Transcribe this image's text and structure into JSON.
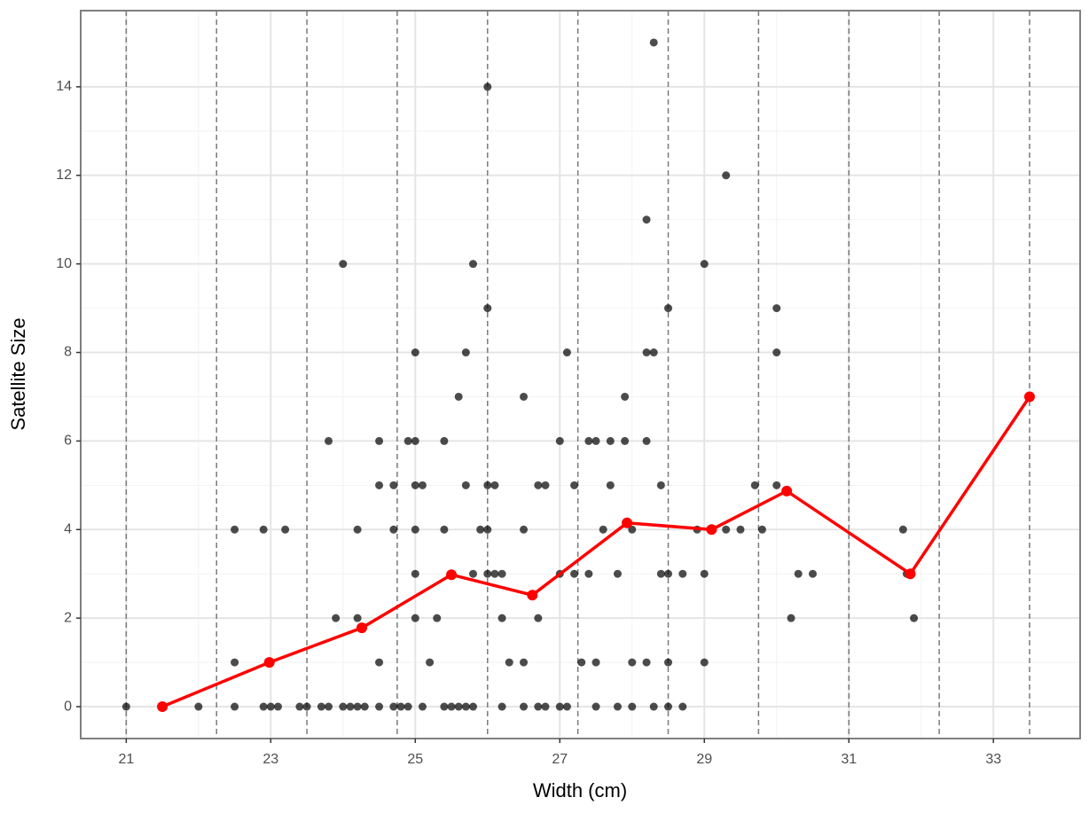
{
  "chart_data": {
    "type": "scatter",
    "xlabel": "Width (cm)",
    "ylabel": "Satellite Size",
    "xlim": [
      20.37,
      34.2
    ],
    "ylim": [
      -0.72,
      15.72
    ],
    "xticks": [
      21,
      23,
      25,
      27,
      29,
      31,
      33
    ],
    "yticks": [
      0,
      2,
      4,
      6,
      8,
      10,
      12,
      14
    ],
    "grid": true,
    "vlines": [
      21,
      22.25,
      23.5,
      24.75,
      26,
      27.25,
      28.5,
      29.75,
      31,
      32.25,
      33.5
    ],
    "series": [
      {
        "type": "scatter",
        "color": "#000000",
        "x": [
          21.0,
          22.0,
          22.5,
          22.9,
          23.0,
          23.1,
          23.4,
          23.5,
          23.7,
          23.8,
          24.0,
          24.1,
          24.2,
          24.3,
          24.5,
          24.7,
          24.8,
          24.9,
          25.1,
          25.4,
          25.5,
          25.6,
          25.7,
          25.8,
          26.2,
          26.5,
          26.7,
          26.8,
          27.0,
          27.1,
          27.5,
          27.8,
          28.0,
          28.3,
          28.5,
          28.7,
          22.5,
          24.5,
          25.2,
          26.3,
          26.5,
          27.3,
          27.5,
          28.0,
          28.2,
          28.5,
          29.0,
          23.9,
          24.2,
          25.0,
          25.3,
          26.2,
          26.7,
          30.2,
          31.9,
          25.0,
          25.8,
          26.0,
          26.1,
          26.2,
          27.0,
          27.2,
          27.4,
          27.8,
          28.4,
          28.5,
          28.7,
          29.0,
          30.3,
          30.5,
          31.8,
          22.5,
          22.9,
          23.2,
          24.2,
          24.7,
          25.0,
          25.4,
          25.9,
          26.0,
          26.5,
          27.6,
          28.0,
          28.9,
          29.1,
          29.3,
          29.5,
          29.8,
          31.75,
          24.5,
          24.7,
          25.0,
          25.1,
          25.7,
          26.0,
          26.1,
          26.7,
          26.8,
          27.2,
          27.7,
          28.4,
          29.7,
          30.0,
          23.8,
          24.5,
          24.9,
          25.0,
          25.4,
          27.0,
          27.4,
          27.5,
          27.7,
          27.9,
          28.2,
          25.6,
          26.5,
          27.9,
          25.0,
          25.7,
          27.1,
          28.2,
          28.3,
          30.0,
          26.0,
          28.5,
          30.0,
          24.0,
          25.8,
          29.0,
          28.2,
          29.3,
          26.0,
          28.3
        ],
        "values": [
          0,
          0,
          0,
          0,
          0,
          0,
          0,
          0,
          0,
          0,
          0,
          0,
          0,
          0,
          0,
          0,
          0,
          0,
          0,
          0,
          0,
          0,
          0,
          0,
          0,
          0,
          0,
          0,
          0,
          0,
          0,
          0,
          0,
          0,
          0,
          0,
          1,
          1,
          1,
          1,
          1,
          1,
          1,
          1,
          1,
          1,
          1,
          2,
          2,
          2,
          2,
          2,
          2,
          2,
          2,
          3,
          3,
          3,
          3,
          3,
          3,
          3,
          3,
          3,
          3,
          3,
          3,
          3,
          3,
          3,
          3,
          4,
          4,
          4,
          4,
          4,
          4,
          4,
          4,
          4,
          4,
          4,
          4,
          4,
          4,
          4,
          4,
          4,
          4,
          5,
          5,
          5,
          5,
          5,
          5,
          5,
          5,
          5,
          5,
          5,
          5,
          5,
          5,
          6,
          6,
          6,
          6,
          6,
          6,
          6,
          6,
          6,
          6,
          6,
          7,
          7,
          7,
          8,
          8,
          8,
          8,
          8,
          8,
          9,
          9,
          9,
          10,
          10,
          10,
          11,
          12,
          14,
          15
        ]
      },
      {
        "type": "line",
        "color": "#ff0000",
        "x": [
          21.5,
          22.98,
          24.26,
          25.5,
          26.62,
          27.93,
          29.1,
          30.14,
          31.85,
          33.5
        ],
        "values": [
          0,
          1.0,
          1.78,
          2.98,
          2.52,
          4.15,
          4.0,
          4.87,
          3.0,
          7.0
        ]
      }
    ]
  }
}
